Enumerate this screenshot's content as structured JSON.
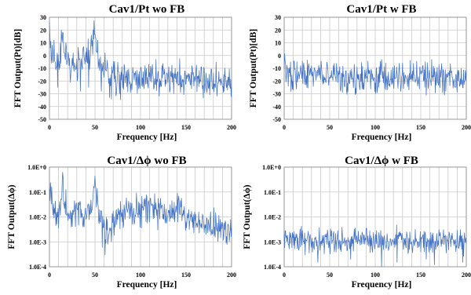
{
  "colors": {
    "series": "#4472c4",
    "grid": "#c8c8c8",
    "frame": "#8c8c8c"
  },
  "chart_data": [
    {
      "type": "line",
      "title": "Cav1/Pt wo FB",
      "xlabel": "Frequency [Hz]",
      "ylabel": "FFT Output(Pt)[dB]",
      "xlim": [
        0,
        200
      ],
      "ylim": [
        -50,
        30
      ],
      "xticks": [
        "0",
        "50",
        "100",
        "150",
        "200"
      ],
      "yticks": [
        "-50",
        "-40",
        "-30",
        "-20",
        "-10",
        "0",
        "10",
        "20",
        "30"
      ],
      "yscale": "linear",
      "grid": true,
      "legend": "none",
      "x_step": 0.5,
      "anchors": [
        [
          0,
          18
        ],
        [
          1,
          6
        ],
        [
          3,
          -2
        ],
        [
          6,
          -5
        ],
        [
          10,
          -8
        ],
        [
          13,
          2
        ],
        [
          14.5,
          22
        ],
        [
          16,
          5
        ],
        [
          18,
          -2
        ],
        [
          22,
          -5
        ],
        [
          28,
          -7
        ],
        [
          33,
          -4
        ],
        [
          37,
          -2
        ],
        [
          40,
          -6
        ],
        [
          44,
          -3
        ],
        [
          47,
          5
        ],
        [
          48.5,
          12
        ],
        [
          50,
          22
        ],
        [
          51.5,
          8
        ],
        [
          54,
          -6
        ],
        [
          60,
          -13
        ],
        [
          70,
          -16
        ],
        [
          80,
          -17
        ],
        [
          90,
          -18
        ],
        [
          100,
          -17
        ],
        [
          110,
          -17
        ],
        [
          120,
          -18
        ],
        [
          130,
          -19
        ],
        [
          140,
          -19
        ],
        [
          150,
          -17
        ],
        [
          160,
          -18
        ],
        [
          170,
          -19
        ],
        [
          180,
          -19
        ],
        [
          190,
          -20
        ],
        [
          200,
          -21
        ]
      ],
      "spread": [
        [
          0,
          5
        ],
        [
          50,
          7
        ],
        [
          70,
          7
        ],
        [
          200,
          6
        ]
      ],
      "dips": [
        [
          9,
          -25
        ],
        [
          23,
          -21
        ],
        [
          34,
          -28
        ],
        [
          43,
          -25
        ],
        [
          57,
          -28
        ],
        [
          66,
          -33
        ],
        [
          68,
          -34
        ],
        [
          77,
          -30
        ],
        [
          98,
          -26
        ],
        [
          104,
          -26
        ],
        [
          144,
          -29
        ],
        [
          156,
          -26
        ],
        [
          175,
          -26
        ],
        [
          192,
          -28
        ]
      ],
      "peaks": [
        [
          5,
          12
        ],
        [
          13,
          20
        ],
        [
          26,
          2
        ],
        [
          41,
          6
        ],
        [
          46,
          16
        ]
      ]
    },
    {
      "type": "line",
      "title": "Cav1/Pt w FB",
      "xlabel": "Frequency [Hz]",
      "ylabel": "FFT Output(Pt)[dB]",
      "xlim": [
        0,
        200
      ],
      "ylim": [
        -50,
        30
      ],
      "xticks": [
        "0",
        "50",
        "100",
        "150",
        "200"
      ],
      "yticks": [
        "-50",
        "-40",
        "-30",
        "-20",
        "-10",
        "0",
        "10",
        "20",
        "30"
      ],
      "yscale": "linear",
      "grid": true,
      "legend": "none",
      "x_step": 0.5,
      "anchors": [
        [
          0,
          -15
        ],
        [
          50,
          -16
        ],
        [
          100,
          -17
        ],
        [
          150,
          -16
        ],
        [
          200,
          -17
        ]
      ],
      "spread": [
        [
          0,
          6
        ],
        [
          200,
          6
        ]
      ],
      "dips": [
        [
          10,
          -27
        ],
        [
          62,
          -28
        ],
        [
          64,
          -29
        ],
        [
          112,
          -27
        ],
        [
          131,
          -26
        ],
        [
          137,
          -27
        ],
        [
          158,
          -26
        ],
        [
          174,
          -29
        ],
        [
          176,
          -31
        ],
        [
          188,
          -25
        ]
      ],
      "peaks": [
        [
          18,
          -8
        ],
        [
          41,
          -9
        ],
        [
          54,
          -8
        ],
        [
          80,
          -9
        ],
        [
          121,
          -8
        ],
        [
          152,
          -8
        ],
        [
          170,
          -7
        ]
      ]
    },
    {
      "type": "line",
      "title": "Cav1/Δϕ wo FB",
      "xlabel": "Frequency [Hz]",
      "ylabel": "FFT Output(Δϕ)",
      "xlim": [
        0,
        200
      ],
      "ylim": [
        0.0001,
        1
      ],
      "xticks": [
        "0",
        "50",
        "100",
        "150",
        "200"
      ],
      "yticks": [
        "1.0E-4",
        "1.0E-3",
        "1.0E-2",
        "1.0E-1",
        "1.0E+0"
      ],
      "yscale": "log",
      "grid": true,
      "legend": "none",
      "x_step": 0.5,
      "anchors": [
        [
          0,
          0.15
        ],
        [
          2,
          0.04
        ],
        [
          4,
          0.02
        ],
        [
          8,
          0.012
        ],
        [
          12,
          0.015
        ],
        [
          14.5,
          0.35
        ],
        [
          16,
          0.05
        ],
        [
          18,
          0.02
        ],
        [
          25,
          0.015
        ],
        [
          30,
          0.02
        ],
        [
          35,
          0.012
        ],
        [
          40,
          0.01
        ],
        [
          45,
          0.02
        ],
        [
          48,
          0.08
        ],
        [
          50,
          0.35
        ],
        [
          52,
          0.05
        ],
        [
          55,
          0.02
        ],
        [
          60,
          0.004
        ],
        [
          63,
          0.003
        ],
        [
          68,
          0.006
        ],
        [
          75,
          0.01
        ],
        [
          85,
          0.015
        ],
        [
          95,
          0.02
        ],
        [
          105,
          0.025
        ],
        [
          115,
          0.02
        ],
        [
          125,
          0.015
        ],
        [
          130,
          0.012
        ],
        [
          140,
          0.02
        ],
        [
          145,
          0.015
        ],
        [
          155,
          0.008
        ],
        [
          165,
          0.005
        ],
        [
          180,
          0.004
        ],
        [
          200,
          0.003
        ]
      ],
      "spread": [
        [
          0,
          0.3
        ],
        [
          200,
          0.3
        ]
      ],
      "dips": [
        [
          24,
          0.004
        ],
        [
          38,
          0.004
        ],
        [
          58,
          0.0006
        ],
        [
          61,
          0.0003
        ],
        [
          64,
          0.0008
        ],
        [
          119,
          0.003
        ],
        [
          172,
          0.002
        ],
        [
          194,
          0.0009
        ]
      ],
      "peaks": [
        [
          33,
          0.03
        ],
        [
          43,
          0.025
        ],
        [
          140,
          0.04
        ],
        [
          98,
          0.04
        ]
      ]
    },
    {
      "type": "line",
      "title": "Cav1/Δϕ w FB",
      "xlabel": "Frequency [Hz]",
      "ylabel": "FFT Output(Δϕ)",
      "xlim": [
        0,
        200
      ],
      "ylim": [
        0.0001,
        1
      ],
      "xticks": [
        "0",
        "50",
        "100",
        "150",
        "200"
      ],
      "yticks": [
        "1.0E-4",
        "1.0E-3",
        "1.0E-2",
        "1.0E-1",
        "1.0E+0"
      ],
      "yscale": "log",
      "grid": true,
      "legend": "none",
      "x_step": 0.5,
      "anchors": [
        [
          0,
          0.0012
        ],
        [
          50,
          0.0011
        ],
        [
          100,
          0.001
        ],
        [
          150,
          0.0011
        ],
        [
          200,
          0.001
        ]
      ],
      "spread": [
        [
          0,
          0.25
        ],
        [
          200,
          0.25
        ]
      ],
      "dips": [
        [
          37,
          0.00015
        ],
        [
          73,
          0.0002
        ],
        [
          107,
          0.0001
        ],
        [
          124,
          0.00015
        ],
        [
          156,
          0.0002
        ],
        [
          165,
          0.00012
        ],
        [
          196,
          0.00015
        ]
      ],
      "peaks": [
        [
          6,
          0.0025
        ],
        [
          45,
          0.002
        ],
        [
          52,
          0.0028
        ],
        [
          98,
          0.0024
        ],
        [
          138,
          0.0025
        ],
        [
          190,
          0.003
        ]
      ]
    }
  ]
}
